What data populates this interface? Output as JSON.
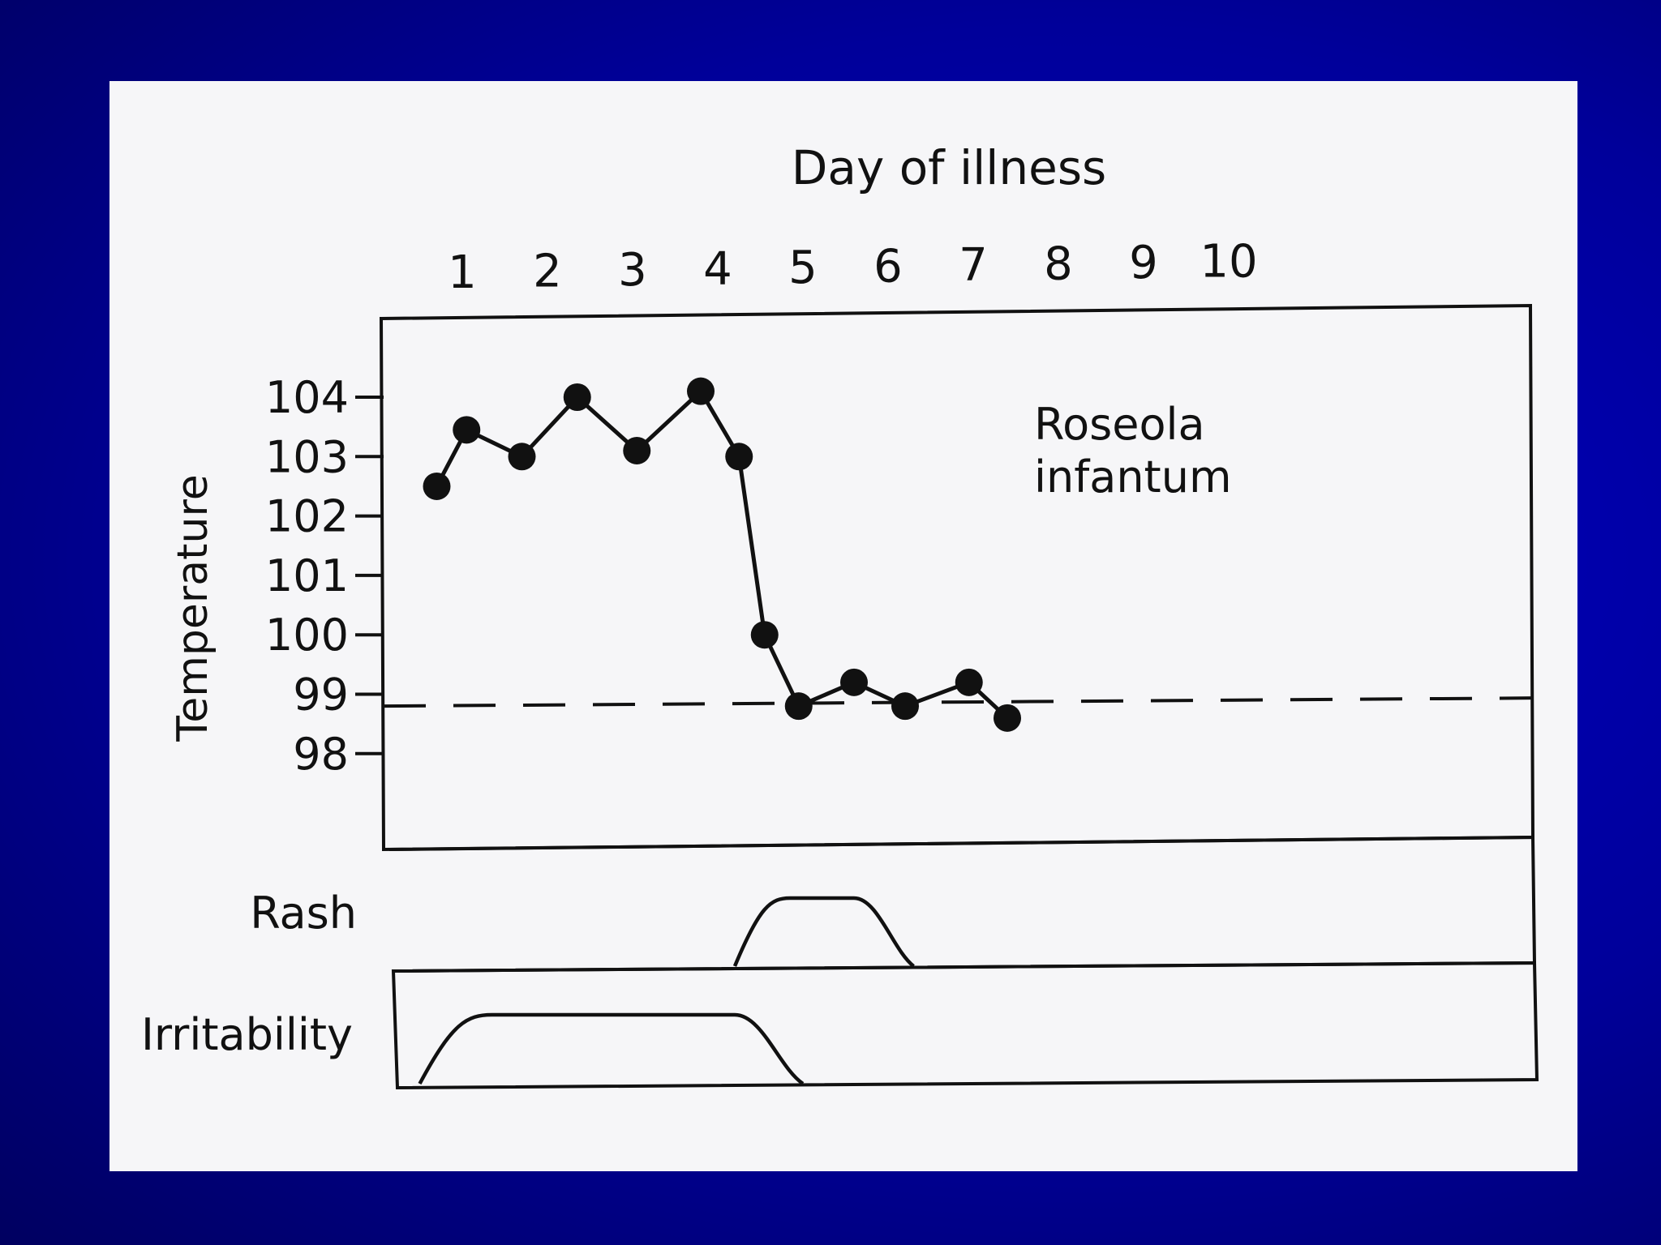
{
  "chart_data": {
    "type": "line",
    "title": "",
    "xlabel": "Day of illness",
    "ylabel": "Temperature",
    "annotation": [
      "Roseola",
      "infantum"
    ],
    "x_ticks": [
      "1",
      "2",
      "3",
      "4",
      "5",
      "6",
      "7",
      "8",
      "9",
      "10"
    ],
    "y_ticks": [
      "104",
      "103",
      "102",
      "101",
      "100",
      "99",
      "98"
    ],
    "ylim": [
      98,
      104.5
    ],
    "xlim": [
      0.5,
      10.5
    ],
    "baseline": 98.8,
    "series": [
      {
        "x": [
          0.7,
          1.05,
          1.7,
          2.35,
          3.05,
          3.8,
          4.25,
          4.55,
          4.95,
          5.6,
          6.2,
          6.95,
          7.4
        ],
        "y": [
          102.5,
          103.45,
          103.0,
          104.0,
          103.1,
          104.1,
          103.0,
          100.0,
          98.8,
          99.2,
          98.8,
          99.2,
          98.6
        ]
      }
    ],
    "timelines": [
      {
        "label": "Rash",
        "rise_start": 4.2,
        "plateau_start": 4.85,
        "plateau_end": 5.6,
        "fall_end": 6.3
      },
      {
        "label": "Irritability",
        "rise_start": 0.5,
        "plateau_start": 1.35,
        "plateau_end": 4.2,
        "fall_end": 5.0
      }
    ]
  },
  "colors": {
    "ink": "#111111",
    "panel": "#f6f6f8",
    "background": "#0000b0"
  }
}
